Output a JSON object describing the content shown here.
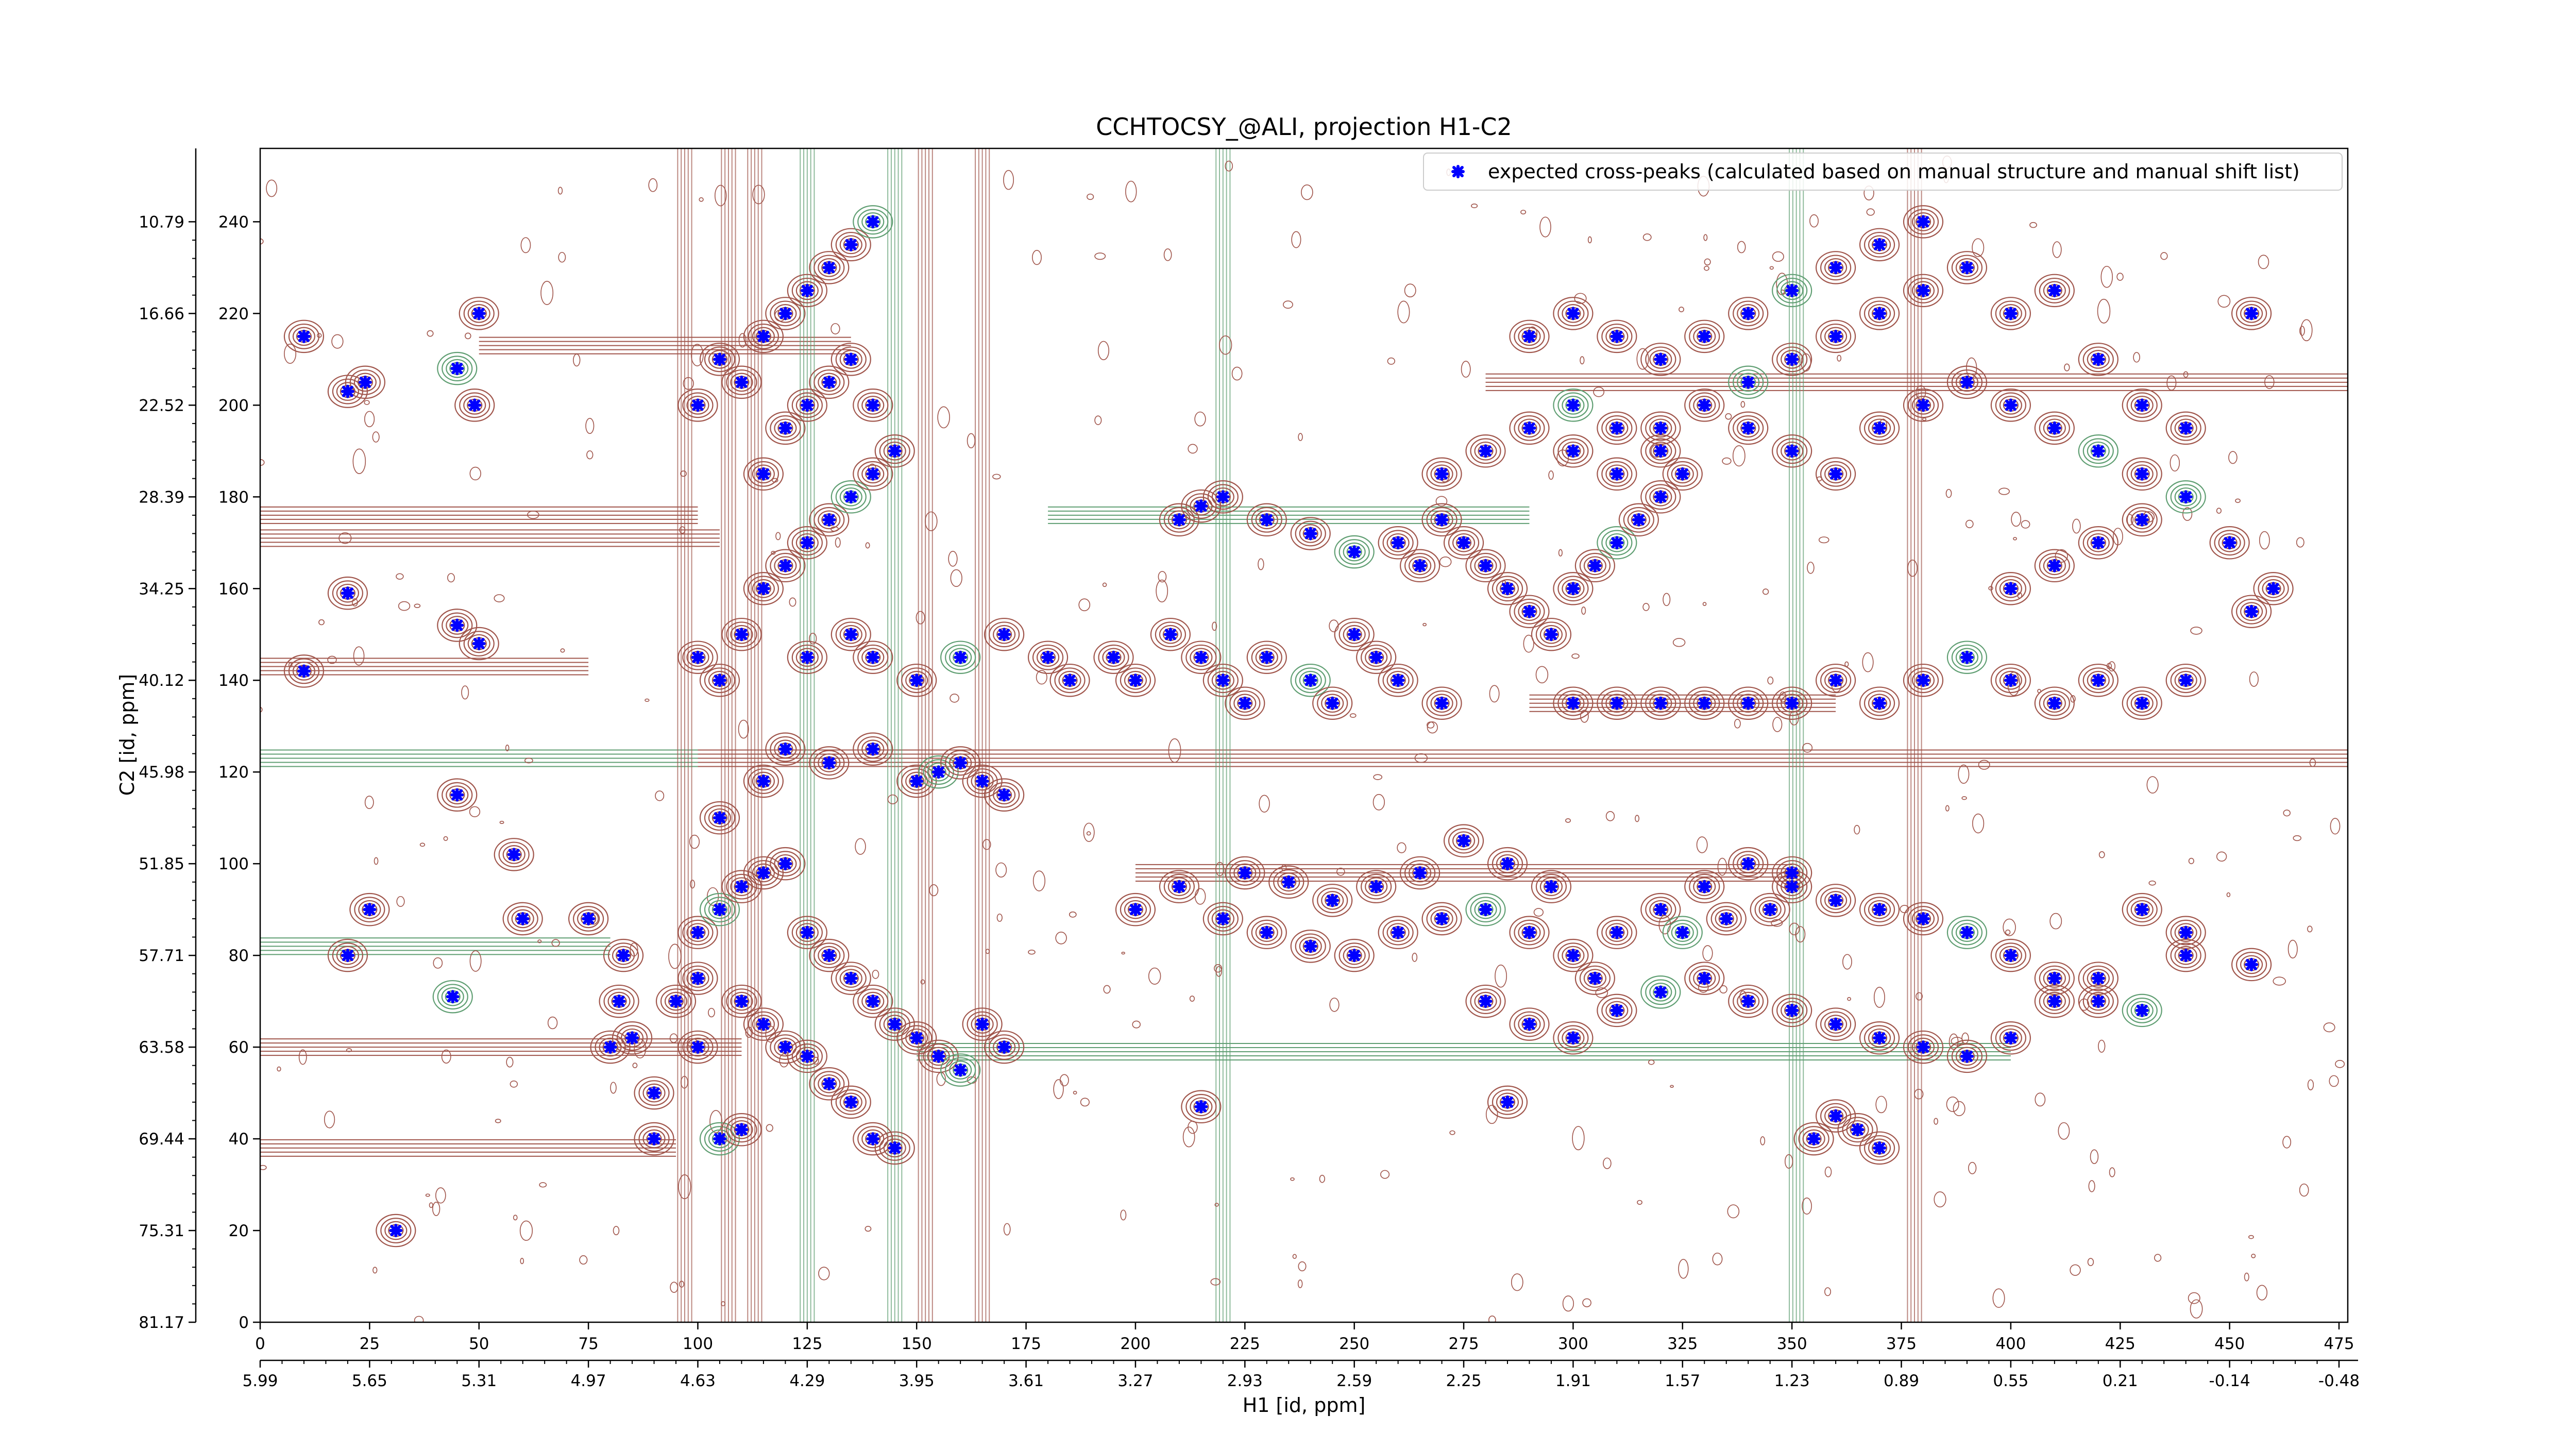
{
  "chart_data": {
    "type": "scatter",
    "title": "CCHTOCSY_@ALI, projection H1-C2",
    "xlabel": "H1 [id, ppm]",
    "ylabel": "C2 [id, ppm]",
    "xlim": [
      0,
      477
    ],
    "ylim": [
      0,
      256
    ],
    "x_ticks": [
      0,
      25,
      50,
      75,
      100,
      125,
      150,
      175,
      200,
      225,
      250,
      275,
      300,
      325,
      350,
      375,
      400,
      425,
      450,
      475
    ],
    "y_ticks": [
      0,
      20,
      40,
      60,
      80,
      100,
      120,
      140,
      160,
      180,
      200,
      220,
      240
    ],
    "x_ppm_labels": [
      "5.99",
      "5.65",
      "5.31",
      "4.97",
      "4.63",
      "4.29",
      "3.95",
      "3.61",
      "3.27",
      "2.93",
      "2.59",
      "2.25",
      "1.91",
      "1.57",
      "1.23",
      "0.89",
      "0.55",
      "0.21",
      "-0.14",
      "-0.48"
    ],
    "y_ppm_labels": [
      "81.17",
      "75.31",
      "69.44",
      "63.58",
      "57.71",
      "51.85",
      "45.98",
      "40.12",
      "34.25",
      "28.39",
      "22.52",
      "16.66",
      "10.79"
    ],
    "legend": {
      "position": "top-right",
      "entries": [
        "expected cross-peaks (calculated based on manual structure and manual shift list)"
      ]
    },
    "colors": {
      "marker": "#0000ff",
      "negative_contour": "#a0554b",
      "positive_contour": "#5f9e72"
    },
    "series": [
      {
        "name": "expected cross-peaks (calculated based on manual structure and manual shift list)",
        "points": [
          [
            10,
            215
          ],
          [
            20,
            203
          ],
          [
            24,
            205
          ],
          [
            45,
            208
          ],
          [
            49,
            200
          ],
          [
            50,
            220
          ],
          [
            31,
            20
          ],
          [
            10,
            142
          ],
          [
            20,
            159
          ],
          [
            45,
            152
          ],
          [
            50,
            148
          ],
          [
            45,
            115
          ],
          [
            20,
            80
          ],
          [
            25,
            90
          ],
          [
            44,
            71
          ],
          [
            58,
            102
          ],
          [
            60,
            88
          ],
          [
            75,
            88
          ],
          [
            83,
            80
          ],
          [
            82,
            70
          ],
          [
            80,
            60
          ],
          [
            85,
            62
          ],
          [
            90,
            50
          ],
          [
            90,
            40
          ],
          [
            100,
            85
          ],
          [
            105,
            90
          ],
          [
            110,
            95
          ],
          [
            115,
            98
          ],
          [
            120,
            100
          ],
          [
            125,
            85
          ],
          [
            130,
            80
          ],
          [
            135,
            75
          ],
          [
            140,
            70
          ],
          [
            145,
            65
          ],
          [
            150,
            62
          ],
          [
            155,
            58
          ],
          [
            160,
            55
          ],
          [
            165,
            65
          ],
          [
            170,
            60
          ],
          [
            110,
            70
          ],
          [
            115,
            65
          ],
          [
            120,
            60
          ],
          [
            125,
            58
          ],
          [
            130,
            52
          ],
          [
            135,
            48
          ],
          [
            140,
            40
          ],
          [
            145,
            38
          ],
          [
            105,
            40
          ],
          [
            110,
            42
          ],
          [
            100,
            60
          ],
          [
            95,
            70
          ],
          [
            100,
            75
          ],
          [
            105,
            110
          ],
          [
            115,
            118
          ],
          [
            120,
            125
          ],
          [
            130,
            122
          ],
          [
            140,
            125
          ],
          [
            150,
            118
          ],
          [
            155,
            120
          ],
          [
            160,
            122
          ],
          [
            165,
            118
          ],
          [
            170,
            115
          ],
          [
            100,
            145
          ],
          [
            105,
            140
          ],
          [
            110,
            150
          ],
          [
            115,
            160
          ],
          [
            120,
            165
          ],
          [
            125,
            170
          ],
          [
            130,
            175
          ],
          [
            135,
            180
          ],
          [
            140,
            185
          ],
          [
            145,
            190
          ],
          [
            100,
            200
          ],
          [
            105,
            210
          ],
          [
            110,
            205
          ],
          [
            115,
            215
          ],
          [
            120,
            220
          ],
          [
            125,
            225
          ],
          [
            130,
            230
          ],
          [
            135,
            235
          ],
          [
            140,
            240
          ],
          [
            120,
            195
          ],
          [
            125,
            200
          ],
          [
            130,
            205
          ],
          [
            135,
            210
          ],
          [
            140,
            200
          ],
          [
            115,
            185
          ],
          [
            125,
            145
          ],
          [
            135,
            150
          ],
          [
            140,
            145
          ],
          [
            150,
            140
          ],
          [
            160,
            145
          ],
          [
            170,
            150
          ],
          [
            180,
            145
          ],
          [
            185,
            140
          ],
          [
            195,
            145
          ],
          [
            200,
            140
          ],
          [
            208,
            150
          ],
          [
            215,
            145
          ],
          [
            220,
            140
          ],
          [
            225,
            135
          ],
          [
            230,
            145
          ],
          [
            240,
            140
          ],
          [
            245,
            135
          ],
          [
            250,
            150
          ],
          [
            255,
            145
          ],
          [
            260,
            140
          ],
          [
            270,
            135
          ],
          [
            210,
            175
          ],
          [
            215,
            178
          ],
          [
            220,
            180
          ],
          [
            230,
            175
          ],
          [
            240,
            172
          ],
          [
            250,
            168
          ],
          [
            260,
            170
          ],
          [
            265,
            165
          ],
          [
            270,
            175
          ],
          [
            275,
            170
          ],
          [
            280,
            165
          ],
          [
            285,
            160
          ],
          [
            290,
            155
          ],
          [
            295,
            150
          ],
          [
            300,
            160
          ],
          [
            305,
            165
          ],
          [
            310,
            170
          ],
          [
            315,
            175
          ],
          [
            320,
            180
          ],
          [
            325,
            185
          ],
          [
            270,
            185
          ],
          [
            280,
            190
          ],
          [
            290,
            195
          ],
          [
            300,
            190
          ],
          [
            310,
            185
          ],
          [
            320,
            195
          ],
          [
            330,
            200
          ],
          [
            340,
            205
          ],
          [
            350,
            210
          ],
          [
            360,
            215
          ],
          [
            370,
            220
          ],
          [
            380,
            225
          ],
          [
            290,
            215
          ],
          [
            300,
            220
          ],
          [
            310,
            215
          ],
          [
            320,
            210
          ],
          [
            330,
            215
          ],
          [
            340,
            220
          ],
          [
            350,
            225
          ],
          [
            360,
            230
          ],
          [
            370,
            235
          ],
          [
            380,
            240
          ],
          [
            390,
            230
          ],
          [
            400,
            220
          ],
          [
            410,
            225
          ],
          [
            420,
            210
          ],
          [
            430,
            200
          ],
          [
            440,
            195
          ],
          [
            455,
            220
          ],
          [
            300,
            200
          ],
          [
            310,
            195
          ],
          [
            320,
            190
          ],
          [
            340,
            195
          ],
          [
            350,
            190
          ],
          [
            360,
            185
          ],
          [
            370,
            195
          ],
          [
            380,
            200
          ],
          [
            390,
            205
          ],
          [
            400,
            200
          ],
          [
            410,
            195
          ],
          [
            420,
            190
          ],
          [
            430,
            185
          ],
          [
            300,
            135
          ],
          [
            310,
            135
          ],
          [
            320,
            135
          ],
          [
            330,
            135
          ],
          [
            340,
            135
          ],
          [
            350,
            135
          ],
          [
            360,
            140
          ],
          [
            370,
            135
          ],
          [
            380,
            140
          ],
          [
            390,
            145
          ],
          [
            400,
            140
          ],
          [
            410,
            135
          ],
          [
            420,
            140
          ],
          [
            430,
            135
          ],
          [
            440,
            140
          ],
          [
            455,
            155
          ],
          [
            400,
            160
          ],
          [
            410,
            165
          ],
          [
            420,
            170
          ],
          [
            430,
            175
          ],
          [
            440,
            180
          ],
          [
            450,
            170
          ],
          [
            460,
            160
          ],
          [
            200,
            90
          ],
          [
            210,
            95
          ],
          [
            220,
            88
          ],
          [
            230,
            85
          ],
          [
            240,
            82
          ],
          [
            250,
            80
          ],
          [
            260,
            85
          ],
          [
            270,
            88
          ],
          [
            280,
            90
          ],
          [
            290,
            85
          ],
          [
            300,
            80
          ],
          [
            310,
            85
          ],
          [
            320,
            90
          ],
          [
            330,
            95
          ],
          [
            340,
            100
          ],
          [
            350,
            98
          ],
          [
            360,
            92
          ],
          [
            370,
            90
          ],
          [
            380,
            88
          ],
          [
            390,
            85
          ],
          [
            400,
            80
          ],
          [
            410,
            75
          ],
          [
            420,
            70
          ],
          [
            430,
            90
          ],
          [
            440,
            85
          ],
          [
            455,
            78
          ],
          [
            280,
            70
          ],
          [
            290,
            65
          ],
          [
            300,
            62
          ],
          [
            310,
            68
          ],
          [
            320,
            72
          ],
          [
            330,
            75
          ],
          [
            340,
            70
          ],
          [
            350,
            68
          ],
          [
            360,
            65
          ],
          [
            370,
            62
          ],
          [
            380,
            60
          ],
          [
            390,
            58
          ],
          [
            400,
            62
          ],
          [
            410,
            70
          ],
          [
            420,
            75
          ],
          [
            430,
            68
          ],
          [
            440,
            80
          ],
          [
            355,
            40
          ],
          [
            360,
            45
          ],
          [
            365,
            42
          ],
          [
            370,
            38
          ],
          [
            285,
            48
          ],
          [
            215,
            47
          ],
          [
            350,
            95
          ],
          [
            345,
            90
          ],
          [
            335,
            88
          ],
          [
            325,
            85
          ],
          [
            305,
            75
          ],
          [
            295,
            95
          ],
          [
            285,
            100
          ],
          [
            275,
            105
          ],
          [
            265,
            98
          ],
          [
            255,
            95
          ],
          [
            245,
            92
          ],
          [
            235,
            96
          ],
          [
            225,
            98
          ]
        ]
      }
    ]
  }
}
